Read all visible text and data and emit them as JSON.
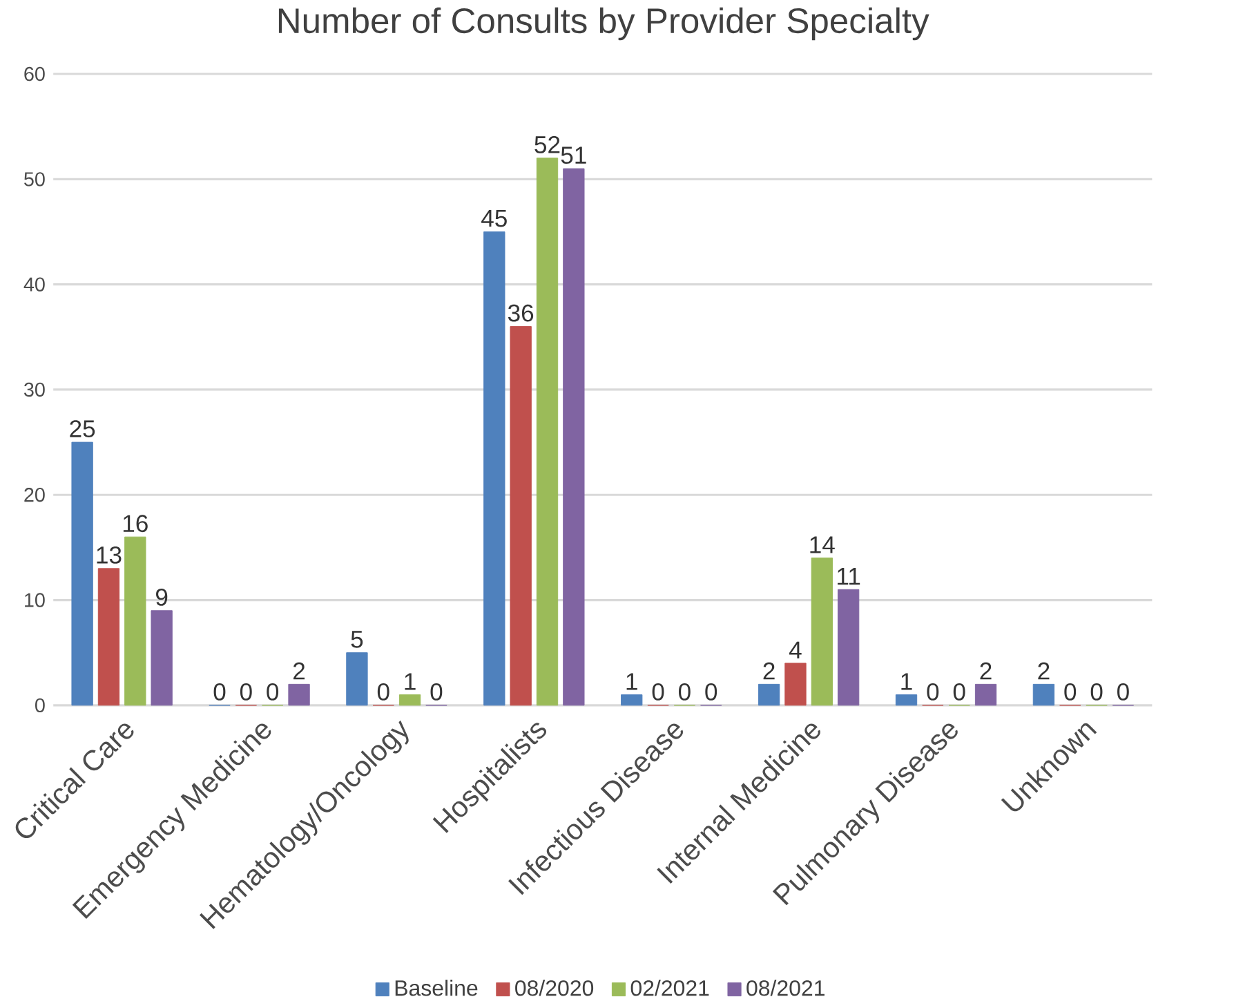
{
  "chart_data": {
    "type": "bar",
    "title": "Number of Consults by Provider Specialty",
    "categories": [
      "Critical Care",
      "Emergency Medicine",
      "Hematology/Oncology",
      "Hospitalists",
      "Infectious Disease",
      "Internal Medicine",
      "Pulmonary Disease",
      "Unknown"
    ],
    "series": [
      {
        "name": "Baseline",
        "color": "#4f81bd",
        "values": [
          25,
          0,
          5,
          45,
          1,
          2,
          1,
          2
        ]
      },
      {
        "name": "08/2020",
        "color": "#c0504d",
        "values": [
          13,
          0,
          0,
          36,
          0,
          4,
          0,
          0
        ]
      },
      {
        "name": "02/2021",
        "color": "#9bbb59",
        "values": [
          16,
          0,
          1,
          52,
          0,
          14,
          0,
          0
        ]
      },
      {
        "name": "08/2021",
        "color": "#8064a2",
        "values": [
          9,
          2,
          0,
          51,
          0,
          11,
          2,
          0
        ]
      }
    ],
    "ylim": [
      0,
      60
    ],
    "yticks": [
      0,
      10,
      20,
      30,
      40,
      50,
      60
    ],
    "grid": "y",
    "legend": "bottom",
    "data_labels": true
  }
}
